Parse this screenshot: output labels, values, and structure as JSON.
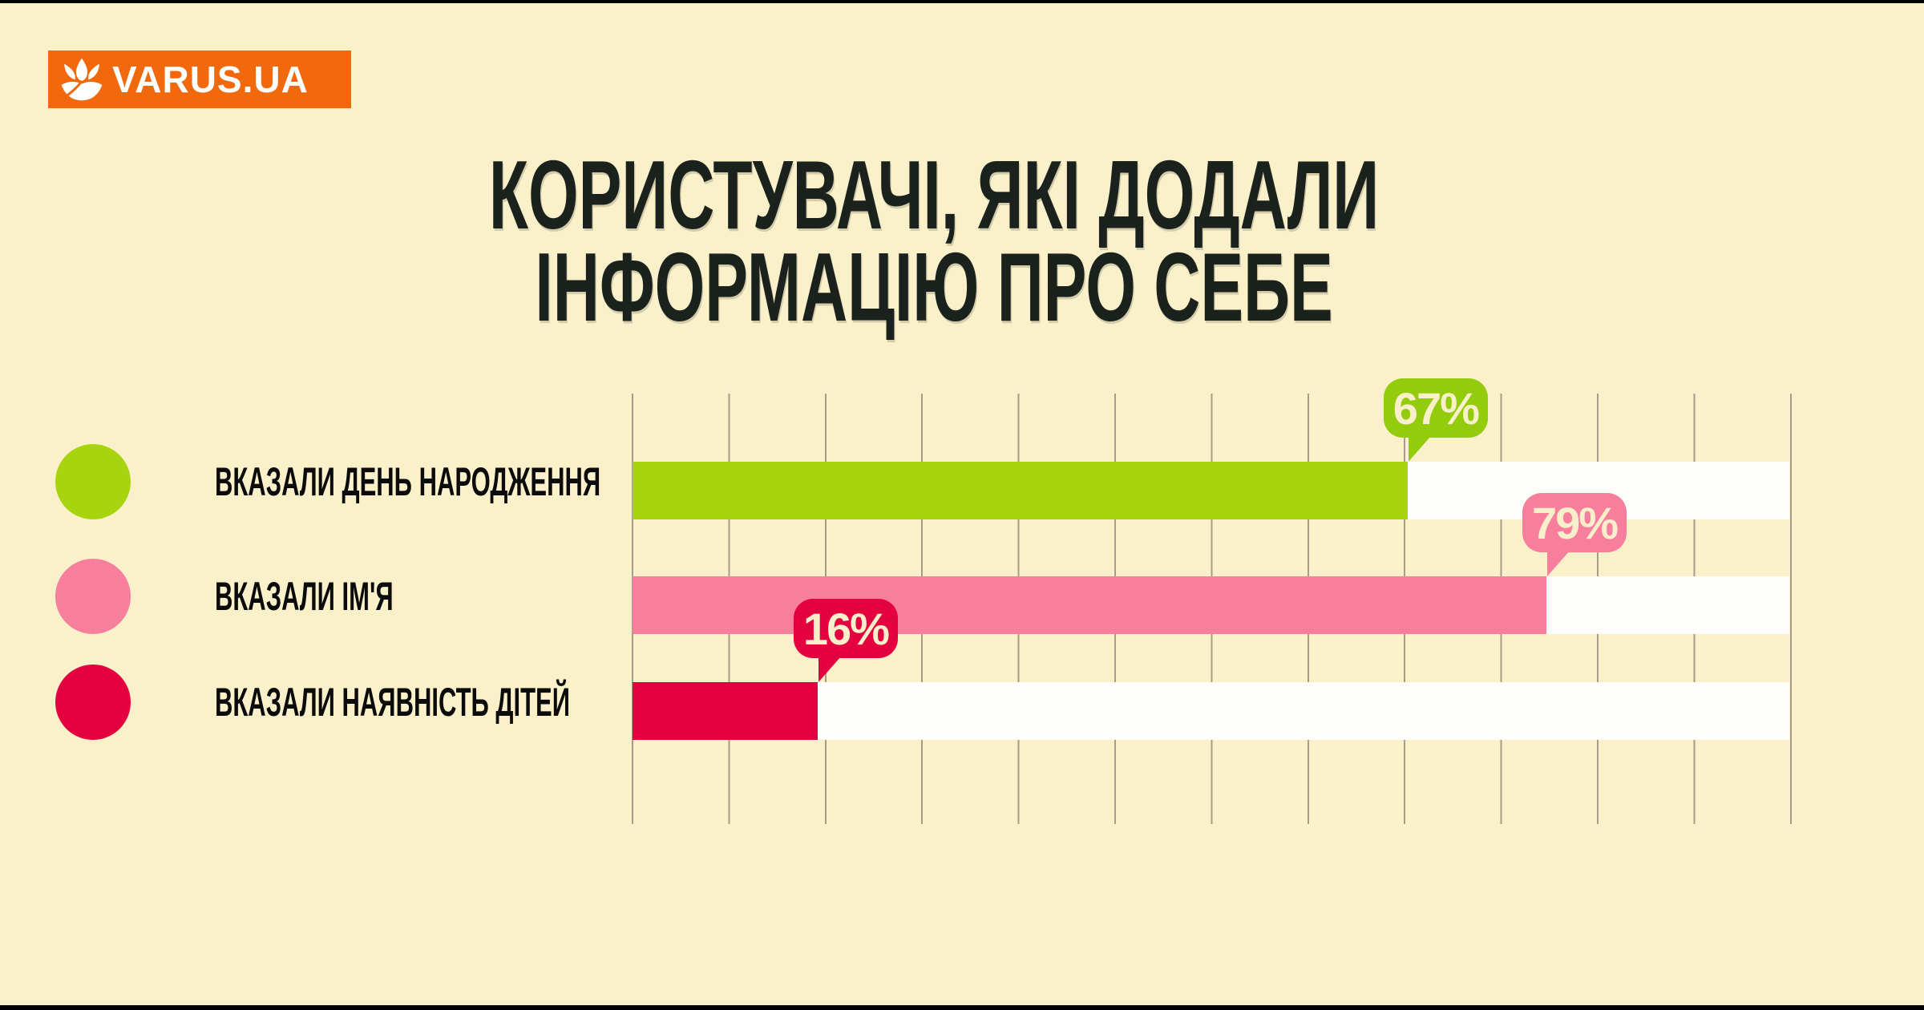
{
  "page": {
    "background": "#FAF0CA",
    "frame_color": "#000000"
  },
  "logo": {
    "text": "VARUS.UA",
    "background": "#F2690D",
    "icon": "tulip-flower-icon",
    "icon_color": "#FFFFFF"
  },
  "title": {
    "line1": "КОРИСТУВАЧІ, ЯКІ ДОДАЛИ",
    "line2": "ІНФОРМАЦІЮ ПРО СЕБЕ",
    "color": "#1B221D"
  },
  "chart_data": {
    "type": "bar",
    "orientation": "horizontal",
    "title": "Користувачі, які додали інформацію про себе",
    "categories": [
      "ВКАЗАЛИ ДЕНЬ НАРОДЖЕННЯ",
      "ВКАЗАЛИ ІМ'Я",
      "ВКАЗАЛИ НАЯВНІСТЬ ДІТЕЙ"
    ],
    "series": [
      {
        "label": "ВКАЗАЛИ ДЕНЬ НАРОДЖЕННЯ",
        "value": 67,
        "value_label": "67%",
        "color": "#A8D40F",
        "bubble_color": "#93CB0D"
      },
      {
        "label": "ВКАЗАЛИ ІМ'Я",
        "value": 79,
        "value_label": "79%",
        "color": "#F87E9E",
        "bubble_color": "#F87E9E"
      },
      {
        "label": "ВКАЗАЛИ НАЯВНІСТЬ ДІТЕЙ",
        "value": 16,
        "value_label": "16%",
        "color": "#E4013F",
        "bubble_color": "#E4013F"
      }
    ],
    "xlim": [
      0,
      100
    ],
    "grid": true,
    "gridline_count": 13,
    "grid_color": "#A59D87",
    "track_color": "#FDFEF9",
    "legend_position": "left",
    "value_labels": "speech-bubbles-above-bar-end"
  }
}
